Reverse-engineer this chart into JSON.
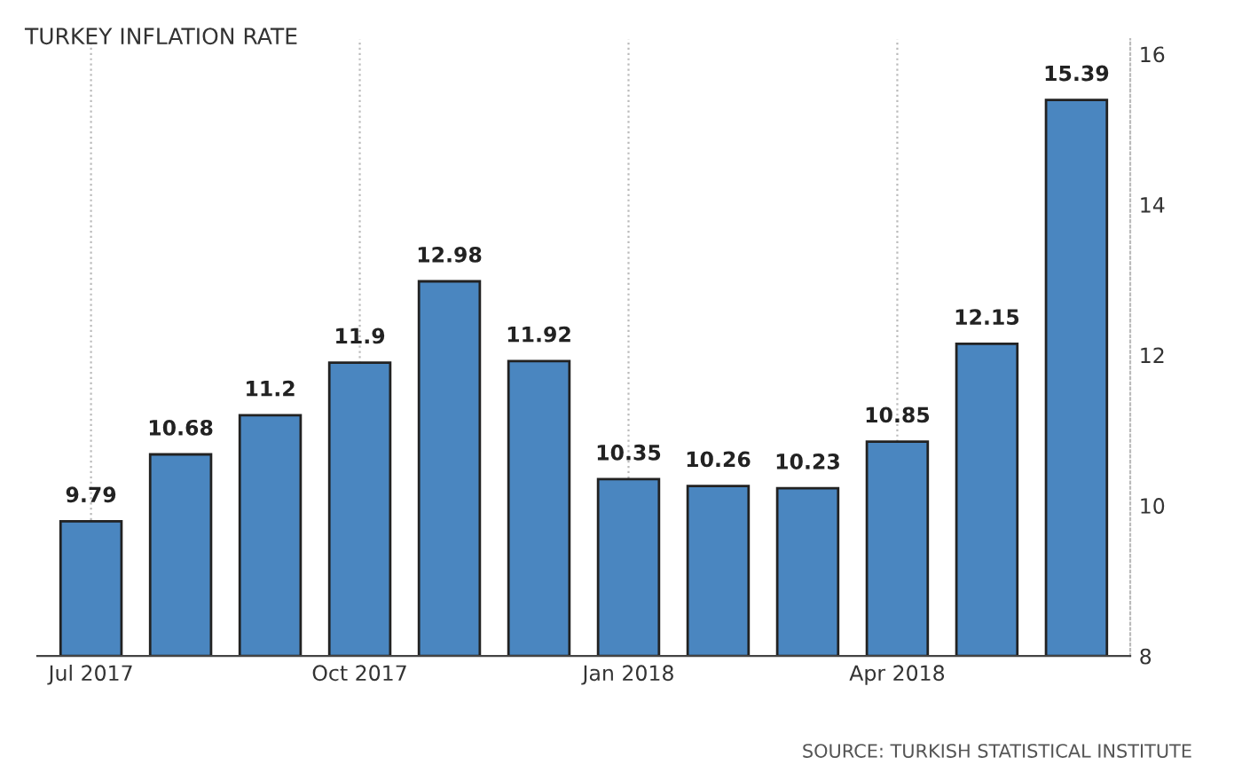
{
  "chart_data": {
    "type": "bar",
    "title": "TURKEY INFLATION RATE",
    "categories": [
      "Jul 2017",
      null,
      null,
      "Oct 2017",
      null,
      null,
      "Jan 2018",
      null,
      null,
      "Apr 2018",
      null,
      null
    ],
    "values": [
      9.79,
      10.68,
      11.2,
      11.9,
      12.98,
      11.92,
      10.35,
      10.26,
      10.23,
      10.85,
      12.15,
      15.39
    ],
    "color": "#4a86c0",
    "data_labels": true,
    "ylim": [
      8,
      16.2
    ],
    "yticks": [
      8,
      10,
      12,
      14,
      16
    ],
    "grid": "x",
    "annotations": [
      "SOURCE: TURKISH STATISTICAL INSTITUTE"
    ]
  }
}
